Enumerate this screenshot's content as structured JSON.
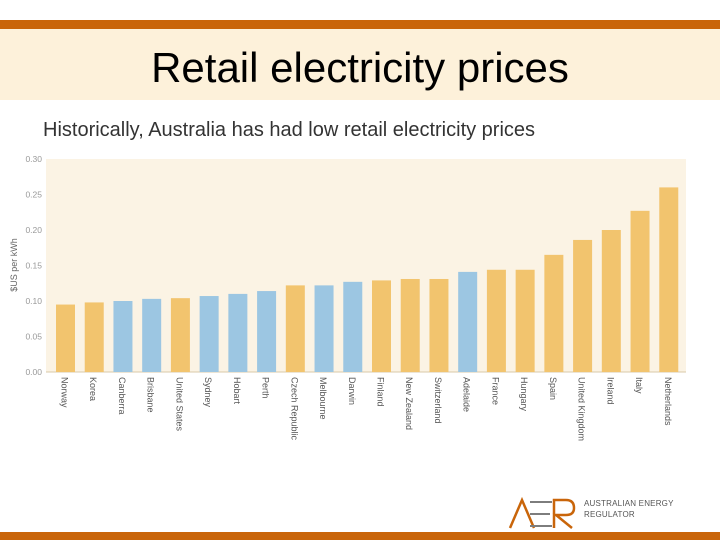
{
  "slide": {
    "title": "Retail electricity prices",
    "subtitle": "Historically, Australia has had low retail electricity prices",
    "logo_line1": "AUSTRALIAN ENERGY",
    "logo_line2": "REGULATOR"
  },
  "colors": {
    "accent": "#c9650a",
    "title_band": "#fdf1da",
    "international_bar": "#f2c46e",
    "australian_bar": "#9cc6e2"
  },
  "chart_data": {
    "type": "bar",
    "ylabel": "$US per kWh",
    "ylim": [
      0,
      0.3
    ],
    "yticks": [
      "0.00",
      "0.05",
      "0.10",
      "0.15",
      "0.20",
      "0.25",
      "0.30"
    ],
    "grid": false,
    "categories": [
      "Norway",
      "Korea",
      "Canberra",
      "Brisbane",
      "United States",
      "Sydney",
      "Hobart",
      "Perth",
      "Czech Republic",
      "Melbourne",
      "Darwin",
      "Finland",
      "New Zealand",
      "Switzerland",
      "Adelaide",
      "France",
      "Hungary",
      "Spain",
      "United Kingdom",
      "Ireland",
      "Italy",
      "Netherlands"
    ],
    "values": [
      0.095,
      0.098,
      0.1,
      0.103,
      0.104,
      0.107,
      0.11,
      0.114,
      0.122,
      0.122,
      0.127,
      0.129,
      0.131,
      0.131,
      0.141,
      0.144,
      0.144,
      0.165,
      0.186,
      0.2,
      0.227,
      0.26
    ],
    "australian": [
      false,
      false,
      true,
      true,
      false,
      true,
      true,
      true,
      false,
      true,
      true,
      false,
      false,
      false,
      true,
      false,
      false,
      false,
      false,
      false,
      false,
      false
    ]
  }
}
